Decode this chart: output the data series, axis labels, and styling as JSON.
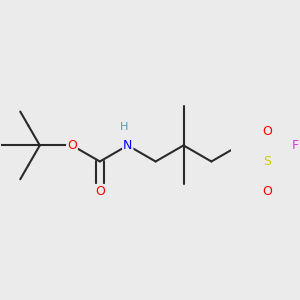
{
  "background_color": "#ebebeb",
  "bond_color": "#2a2a2a",
  "bond_width": 1.5,
  "figsize": [
    3.0,
    3.0
  ],
  "dpi": 100,
  "colors": {
    "O": "#ff0000",
    "N": "#0000ff",
    "S": "#cccc00",
    "F": "#cc44cc",
    "H": "#5599aa",
    "C": "#2a2a2a"
  },
  "font_size": 9.0
}
